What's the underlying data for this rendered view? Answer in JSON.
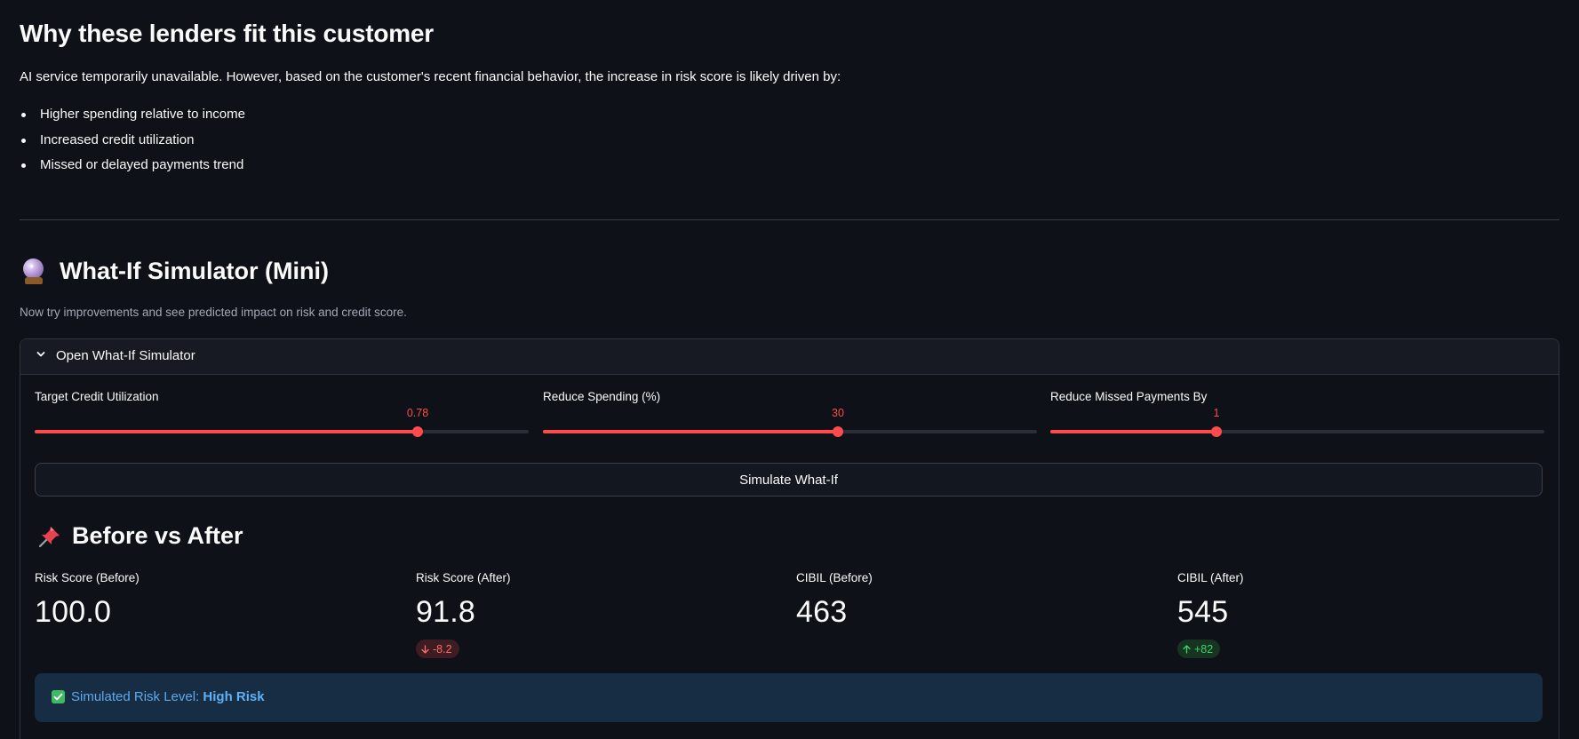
{
  "why": {
    "title": "Why these lenders fit this customer",
    "message": "AI service temporarily unavailable. However, based on the customer's recent financial behavior, the increase in risk score is likely driven by:",
    "bullets": [
      "Higher spending relative to income",
      "Increased credit utilization",
      "Missed or delayed payments trend"
    ]
  },
  "simulator": {
    "title": "What-If Simulator (Mini)",
    "icon": "crystal-ball-icon",
    "caption": "Now try improvements and see predicted impact on risk and credit score.",
    "expander_label": "Open What-If Simulator",
    "sliders": [
      {
        "label": "Target Credit Utilization",
        "value": "0.78",
        "fraction": 0.775
      },
      {
        "label": "Reduce Spending (%)",
        "value": "30",
        "fraction": 0.597
      },
      {
        "label": "Reduce Missed Payments By",
        "value": "1",
        "fraction": 0.337
      }
    ],
    "button_label": "Simulate What-If"
  },
  "before_after": {
    "title": "Before vs After",
    "icon": "pushpin-icon",
    "metrics": [
      {
        "label": "Risk Score (Before)",
        "value": "100.0"
      },
      {
        "label": "Risk Score (After)",
        "value": "91.8",
        "delta": "-8.2",
        "direction": "down"
      },
      {
        "label": "CIBIL (Before)",
        "value": "463"
      },
      {
        "label": "CIBIL (After)",
        "value": "545",
        "delta": "+82",
        "direction": "up"
      }
    ]
  },
  "result": {
    "prefix": "Simulated Risk Level: ",
    "level": "High Risk",
    "icon": "check-mark-icon"
  },
  "colors": {
    "background": "#0e1117",
    "accent": "#ff4b4b",
    "delta_down": "#ff6c6c",
    "delta_up": "#3dd56d",
    "info_bg": "#172d43",
    "info_text": "#60a8ea"
  }
}
